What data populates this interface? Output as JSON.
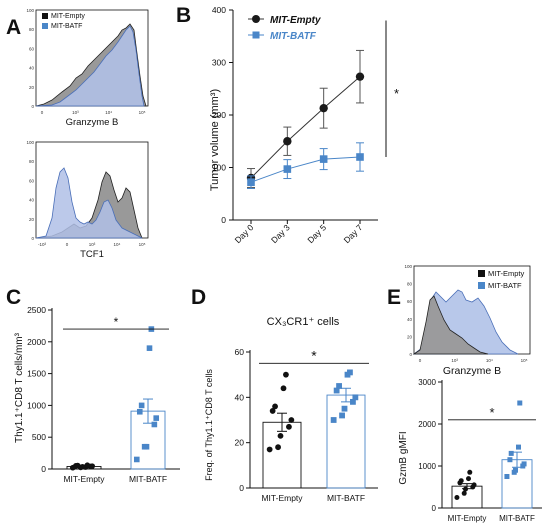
{
  "colors": {
    "empty": "#1a1a1a",
    "batf": "#4a86c8",
    "batf_fill": "#b8c8ea",
    "empty_fill": "#9a9a9a"
  },
  "panel_labels": {
    "A": "A",
    "B": "B",
    "C": "C",
    "D": "D",
    "E": "E"
  },
  "panelA": {
    "legend": [
      "MIT-Empty",
      "MIT-BATF"
    ],
    "top": {
      "xlabel": "Granzyme B",
      "yticks": [
        "100",
        "80",
        "60",
        "40",
        "20",
        "0"
      ],
      "xticks": [
        "0",
        "10³",
        "10⁴",
        "10⁵"
      ]
    },
    "bottom": {
      "xlabel": "TCF1",
      "yticks": [
        "100",
        "80",
        "60",
        "40",
        "20",
        "0"
      ],
      "xticks": [
        "-10³",
        "0",
        "10³",
        "10⁴",
        "10⁵"
      ]
    }
  },
  "panelE_hist": {
    "legend": [
      "MIT-Empty",
      "MIT-BATF"
    ],
    "xlabel": "Granzyme B",
    "yticks": [
      "100",
      "80",
      "60",
      "40",
      "20",
      "0"
    ],
    "xticks": [
      "0",
      "10³",
      "10⁴",
      "10⁵"
    ]
  },
  "chart_data": [
    {
      "id": "B",
      "type": "line",
      "categories": [
        "Day 0",
        "Day 3",
        "Day 5",
        "Day 7"
      ],
      "ylabel": "Tumor volume (mm³)",
      "ylim": [
        0,
        400
      ],
      "yticks": [
        0,
        100,
        200,
        300,
        400
      ],
      "series": [
        {
          "name": "MIT-Empty",
          "values": [
            80,
            150,
            213,
            273
          ],
          "err": [
            18,
            27,
            38,
            50
          ]
        },
        {
          "name": "MIT-BATF",
          "values": [
            72,
            97,
            116,
            120
          ],
          "err": [
            12,
            18,
            20,
            27
          ]
        }
      ],
      "significance": "*"
    },
    {
      "id": "C",
      "type": "bar",
      "categories": [
        "MIT-Empty",
        "MIT-BATF"
      ],
      "ylabel": "Thy1.1⁺CD8 T cells/mm³",
      "ylim": [
        0,
        2500
      ],
      "yticks": [
        0,
        500,
        1000,
        1500,
        2000,
        2500
      ],
      "values": [
        40,
        910
      ],
      "err": [
        8,
        190
      ],
      "points": [
        [
          20,
          25,
          35,
          40,
          45,
          50,
          55,
          30,
          60
        ],
        [
          150,
          350,
          350,
          700,
          800,
          900,
          1000,
          1900,
          2200
        ]
      ],
      "significance": "*"
    },
    {
      "id": "D",
      "type": "bar",
      "title": "CX₃CR1⁺ cells",
      "categories": [
        "MIT-Empty",
        "MIT-BATF"
      ],
      "ylabel": "Freq. of Thy1.1⁺CD8 T cells",
      "ylim": [
        0,
        60
      ],
      "yticks": [
        0,
        20,
        40,
        60
      ],
      "values": [
        29,
        41
      ],
      "err": [
        4,
        3
      ],
      "points": [
        [
          17,
          18,
          23,
          27,
          30,
          34,
          36,
          44,
          50
        ],
        [
          30,
          32,
          35,
          38,
          40,
          43,
          45,
          50,
          51
        ]
      ],
      "significance": "*"
    },
    {
      "id": "E",
      "type": "bar",
      "categories": [
        "MIT-Empty",
        "MIT-BATF"
      ],
      "ylabel": "GzmB gMFI",
      "ylim": [
        0,
        3000
      ],
      "yticks": [
        0,
        1000,
        2000,
        3000
      ],
      "values": [
        520,
        1150
      ],
      "err": [
        60,
        180
      ],
      "points": [
        [
          250,
          350,
          450,
          500,
          550,
          600,
          650,
          700,
          850
        ],
        [
          750,
          850,
          900,
          1000,
          1050,
          1150,
          1300,
          1450,
          2500
        ]
      ],
      "significance": "*"
    }
  ]
}
